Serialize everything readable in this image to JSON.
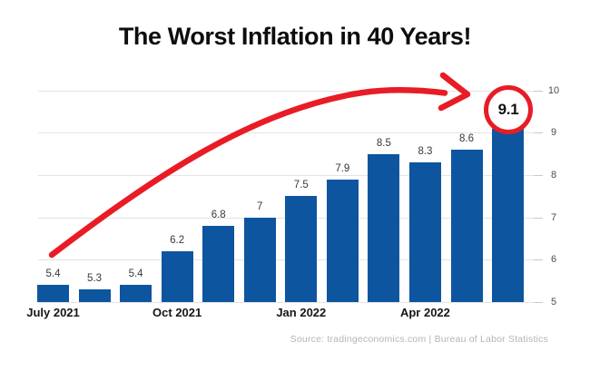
{
  "title": "The Worst Inflation in 40 Years!",
  "source": "Source: tradingeconomics.com | Bureau of Labor Statistics",
  "colors": {
    "bar": "#0d559f",
    "accent_red": "#e81c25",
    "grid": "#e4e4e4",
    "value_label": "#383838",
    "x_label": "#161616",
    "y_label": "#4d4d4d",
    "source_text": "#b5b5b5",
    "title_text": "#0d0d0d",
    "background": "#ffffff"
  },
  "chart_data": {
    "type": "bar",
    "title": "The Worst Inflation in 40 Years!",
    "categories": [
      "July 2021",
      "",
      "",
      "Oct 2021",
      "",
      "",
      "Jan 2022",
      "",
      "",
      "Apr 2022",
      "",
      ""
    ],
    "values": [
      5.4,
      5.3,
      5.4,
      6.2,
      6.8,
      7,
      7.5,
      7.9,
      8.5,
      8.3,
      8.6,
      9.1
    ],
    "value_labels": [
      "5.4",
      "5.3",
      "5.4",
      "6.2",
      "6.8",
      "7",
      "7.5",
      "7.9",
      "8.5",
      "8.3",
      "8.6",
      "9.1"
    ],
    "xlabel": "",
    "ylabel": "",
    "ylim": [
      5,
      10
    ],
    "y_ticks": [
      5,
      6,
      7,
      8,
      9,
      10
    ],
    "y_axis_side": "right",
    "grid": "horizontal",
    "legend": "none",
    "highlight": {
      "index": 11,
      "label": "9.1",
      "style": "red-circle"
    },
    "annotation": "red curved arrow rising from first bar toward circled 9.1"
  }
}
